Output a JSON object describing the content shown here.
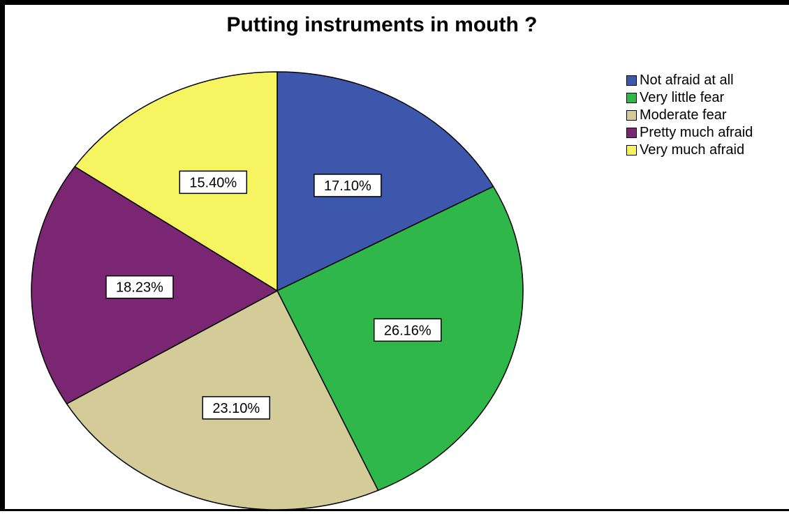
{
  "chart_data": {
    "type": "pie",
    "title": "Putting instruments in mouth ?",
    "categories": [
      "Not afraid at all",
      "Very little fear",
      "Moderate fear",
      "Pretty much afraid",
      "Very much afraid"
    ],
    "values": [
      17.1,
      26.16,
      23.1,
      18.23,
      15.4
    ],
    "labels": [
      "17.10%",
      "26.16%",
      "23.10%",
      "18.23%",
      "15.40%"
    ],
    "colors": [
      "#3d57ad",
      "#2fb74a",
      "#d4cc98",
      "#7b2672",
      "#f7f462"
    ],
    "legend_position": "top-right",
    "start": "12 o'clock",
    "direction": "clockwise"
  }
}
